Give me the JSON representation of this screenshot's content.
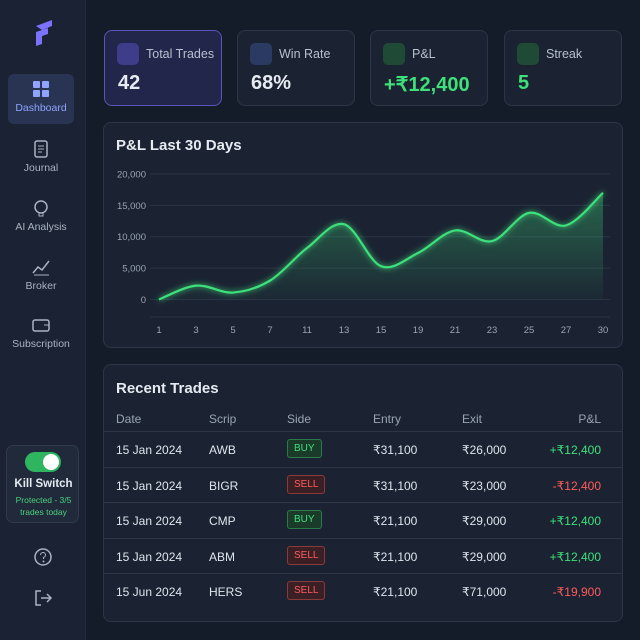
{
  "sidebar": {
    "nav": [
      "Dashboard",
      "Journal",
      "AI Analysis",
      "Broker",
      "Subscription"
    ],
    "kill_switch": {
      "title": "Kill Switch",
      "status": "Protected - 3/5 trades today"
    }
  },
  "stats": [
    {
      "label": "Total Trades",
      "value": "42"
    },
    {
      "label": "Win Rate",
      "value": "68%"
    },
    {
      "label": "P&L",
      "value": "+₹12,400"
    },
    {
      "label": "Streak",
      "value": "5"
    }
  ],
  "chart_data": {
    "type": "line",
    "title": "P&L Last 30 Days",
    "color": "#3ee07a",
    "grid": true,
    "categories": [
      "1",
      "3",
      "5",
      "7",
      "11",
      "13",
      "15",
      "19",
      "21",
      "23",
      "25",
      "27",
      "30"
    ],
    "values": [
      0,
      2200,
      1100,
      3000,
      8200,
      12000,
      5300,
      7400,
      11000,
      9300,
      13800,
      11800,
      17000
    ],
    "ylim": [
      -2800,
      20000
    ],
    "yticks": [
      0,
      {
        "value": 5000,
        "label": "5,000"
      },
      {
        "value": 10000,
        "label": "10,000"
      },
      {
        "value": 15000,
        "label": "15,000"
      },
      {
        "value": 20000,
        "label": "20,000"
      }
    ]
  },
  "trades": {
    "title": "Recent Trades",
    "columns": [
      "Date",
      "Scrip",
      "Side",
      "Entry",
      "Exit",
      "P&L"
    ],
    "rows": [
      [
        "15 Jan 2024",
        "AWB",
        "BUY",
        "₹31,100",
        "₹26,000",
        "+₹12,400"
      ],
      [
        "15 Jan 2024",
        "BIGR",
        "SELL",
        "₹31,100",
        "₹23,000",
        "-₹12,400"
      ],
      [
        "15 Jan 2024",
        "CMP",
        "BUY",
        "₹21,100",
        "₹29,000",
        "+₹12,400"
      ],
      [
        "15 Jan 2024",
        "ABM",
        "SELL",
        "₹21,100",
        "₹29,000",
        "+₹12,400"
      ],
      [
        "15 Jun 2024",
        "HERS",
        "SELL",
        "₹21,100",
        "₹71,000",
        "-₹19,900"
      ]
    ]
  }
}
